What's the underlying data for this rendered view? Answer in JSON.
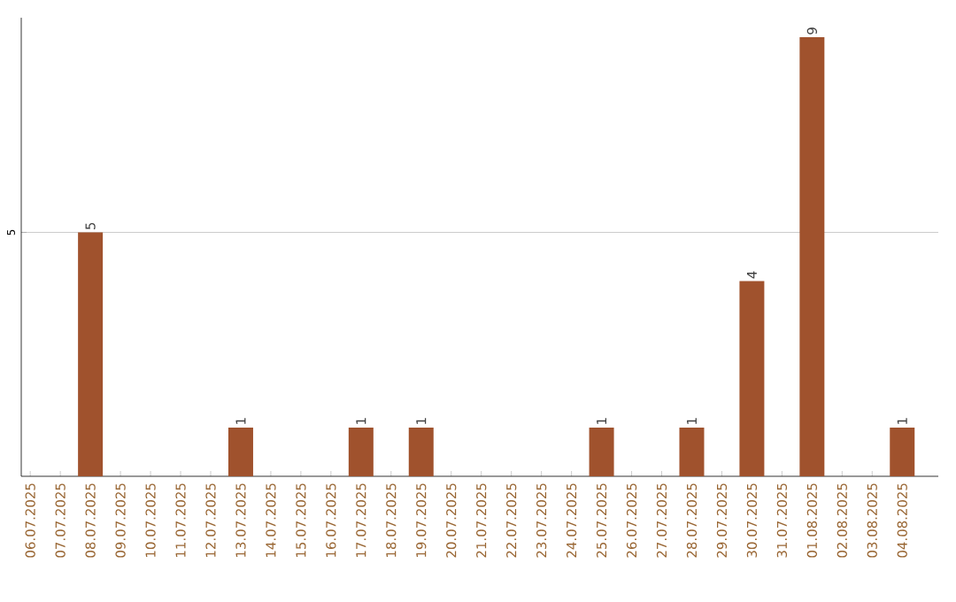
{
  "chart_data": {
    "type": "bar",
    "categories": [
      "06.07.2025",
      "07.07.2025",
      "08.07.2025",
      "09.07.2025",
      "10.07.2025",
      "11.07.2025",
      "12.07.2025",
      "13.07.2025",
      "14.07.2025",
      "15.07.2025",
      "16.07.2025",
      "17.07.2025",
      "18.07.2025",
      "19.07.2025",
      "20.07.2025",
      "21.07.2025",
      "22.07.2025",
      "23.07.2025",
      "24.07.2025",
      "25.07.2025",
      "26.07.2025",
      "27.07.2025",
      "28.07.2025",
      "29.07.2025",
      "30.07.2025",
      "31.07.2025",
      "01.08.2025",
      "02.08.2025",
      "03.08.2025",
      "04.08.2025"
    ],
    "values": [
      0,
      0,
      5,
      0,
      0,
      0,
      0,
      1,
      0,
      0,
      0,
      1,
      0,
      1,
      0,
      0,
      0,
      0,
      0,
      1,
      0,
      0,
      1,
      0,
      4,
      0,
      9,
      0,
      0,
      1
    ],
    "value_labels": [
      null,
      null,
      "5",
      null,
      null,
      null,
      null,
      "1",
      null,
      null,
      null,
      "1",
      null,
      "1",
      null,
      null,
      null,
      null,
      null,
      "1",
      null,
      null,
      "1",
      null,
      "4",
      null,
      "9",
      null,
      null,
      "1"
    ],
    "color": "#a0522d",
    "ylim": [
      0,
      9.4
    ],
    "yticks": [
      5
    ],
    "grid": "y"
  }
}
